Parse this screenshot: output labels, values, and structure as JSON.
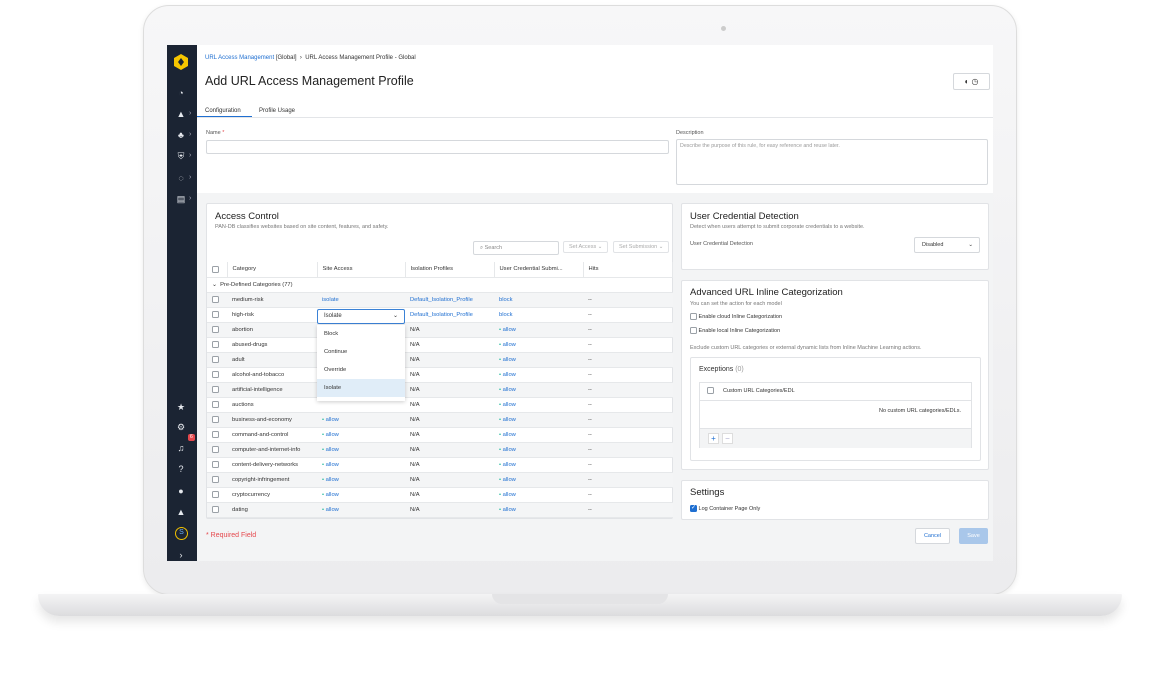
{
  "breadcrumb": {
    "root": "URL Access Management",
    "scope": "[Global]",
    "current": "URL Access Management Profile - Global"
  },
  "page_title": "Add URL Access Management Profile",
  "tabs": [
    "Configuration",
    "Profile Usage"
  ],
  "name": {
    "label": "Name",
    "required_mark": "*",
    "value": ""
  },
  "description": {
    "label": "Description",
    "placeholder": "Describe the purpose of this rule, for easy reference and reuse later."
  },
  "sidebar": {
    "notification_count": "6",
    "coin_label": "S"
  },
  "access_control": {
    "title": "Access Control",
    "subtitle": "PAN-DB classifies websites based on site content, features, and safety.",
    "search_placeholder": "Search",
    "set_access": "Set Access",
    "set_submission": "Set Submission",
    "columns": [
      "Category",
      "Site Access",
      "Isolation Profiles",
      "User Credential Submi...",
      "Hits"
    ],
    "group": "Pre-Defined Categories (77)",
    "rows": [
      {
        "category": "medium-risk",
        "site_access": "isolate",
        "isolation": "Default_Isolation_Profile",
        "credential": "block",
        "hits": "--"
      },
      {
        "category": "high-risk",
        "site_access": "Isolate",
        "isolation": "Default_Isolation_Profile",
        "credential": "block",
        "hits": "--"
      },
      {
        "category": "abortion",
        "site_access": "",
        "isolation": "N/A",
        "credential": "allow",
        "hits": "--"
      },
      {
        "category": "abused-drugs",
        "site_access": "",
        "isolation": "N/A",
        "credential": "allow",
        "hits": "--"
      },
      {
        "category": "adult",
        "site_access": "",
        "isolation": "N/A",
        "credential": "allow",
        "hits": "--"
      },
      {
        "category": "alcohol-and-tobacco",
        "site_access": "",
        "isolation": "N/A",
        "credential": "allow",
        "hits": "--"
      },
      {
        "category": "artificial-intelligence",
        "site_access": "",
        "isolation": "N/A",
        "credential": "allow",
        "hits": "--"
      },
      {
        "category": "auctions",
        "site_access": "",
        "isolation": "N/A",
        "credential": "allow",
        "hits": "--"
      },
      {
        "category": "business-and-economy",
        "site_access": "allow",
        "isolation": "N/A",
        "credential": "allow",
        "hits": "--"
      },
      {
        "category": "command-and-control",
        "site_access": "allow",
        "isolation": "N/A",
        "credential": "allow",
        "hits": "--"
      },
      {
        "category": "computer-and-internet-info",
        "site_access": "allow",
        "isolation": "N/A",
        "credential": "allow",
        "hits": "--"
      },
      {
        "category": "content-delivery-networks",
        "site_access": "allow",
        "isolation": "N/A",
        "credential": "allow",
        "hits": "--"
      },
      {
        "category": "copyright-infringement",
        "site_access": "allow",
        "isolation": "N/A",
        "credential": "allow",
        "hits": "--"
      },
      {
        "category": "cryptocurrency",
        "site_access": "allow",
        "isolation": "N/A",
        "credential": "allow",
        "hits": "--"
      },
      {
        "category": "dating",
        "site_access": "allow",
        "isolation": "N/A",
        "credential": "allow",
        "hits": "--"
      }
    ],
    "dropdown": {
      "value": "Isolate",
      "options": [
        "Block",
        "Continue",
        "Override",
        "Isolate"
      ],
      "selected": "Isolate"
    }
  },
  "credential_detection": {
    "title": "User Credential Detection",
    "subtitle": "Detect when users attempt to submit corporate credentials to a website.",
    "label": "User Credential Detection",
    "value": "Disabled"
  },
  "inline_cat": {
    "title": "Advanced URL Inline Categorization",
    "subtitle": "You can set the action for each model",
    "cloud": "Enable cloud Inline Categorization",
    "local": "Enable local Inline Categorization",
    "exclude_note": "Exclude custom URL categories or external dynamic lists from Inline Machine Learning actions.",
    "exceptions_title": "Exceptions",
    "exceptions_count": "(0)",
    "exceptions_column": "Custom URL Categories/EDL",
    "empty": "No custom URL categories/EDLs."
  },
  "settings": {
    "title": "Settings",
    "log_container": "Log Container Page Only",
    "log_container_checked": true
  },
  "footer": {
    "required_note": "* Required Field",
    "cancel": "Cancel",
    "save": "Save"
  },
  "colors": {
    "sidebar": "#1b2433",
    "link": "#1f6fd1",
    "allow_dot": "#1bb89a",
    "required": "#e5484d",
    "save_disabled": "#a9c7ea"
  }
}
